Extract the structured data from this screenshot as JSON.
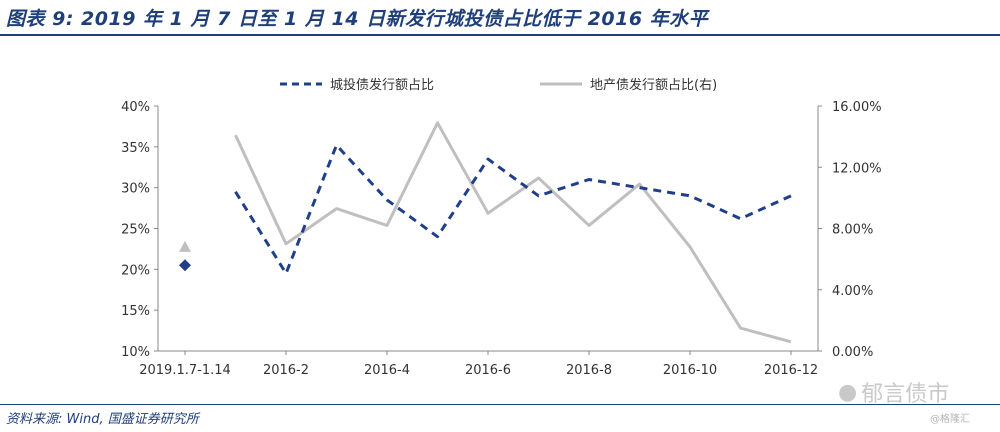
{
  "title": "图表 9: 2019 年 1 月 7 日至 1 月 14 日新发行城投债占比低于 2016 年水平",
  "source": "资料来源: Wind, 国盛证券研究所",
  "watermark": {
    "primary": "郁言债市",
    "secondary": "@格隆汇"
  },
  "colors": {
    "series_urban": "#1f3f8a",
    "series_property": "#bfbfbf",
    "title": "#1e3f7a"
  },
  "chart_data": {
    "type": "line",
    "categories": [
      "2019.1.7-1.14",
      "2016-1",
      "2016-2",
      "2016-3",
      "2016-4",
      "2016-5",
      "2016-6",
      "2016-7",
      "2016-8",
      "2016-9",
      "2016-10",
      "2016-11",
      "2016-12"
    ],
    "x_tick_labels": [
      "2019.1.7-1.14",
      "2016-2",
      "2016-4",
      "2016-6",
      "2016-8",
      "2016-10",
      "2016-12"
    ],
    "y_left": {
      "ticks": [
        "10%",
        "15%",
        "20%",
        "25%",
        "30%",
        "35%",
        "40%"
      ],
      "range": [
        0.1,
        0.4
      ]
    },
    "y_right": {
      "ticks": [
        "0.00%",
        "4.00%",
        "8.00%",
        "12.00%",
        "16.00%"
      ],
      "range": [
        0,
        0.16
      ]
    },
    "series": [
      {
        "name": "城投债发行额占比",
        "axis": "left",
        "style": "dashed",
        "values": [
          0.205,
          0.295,
          0.195,
          0.352,
          0.285,
          0.24,
          0.335,
          0.29,
          0.31,
          0.3,
          0.29,
          0.262,
          0.29
        ]
      },
      {
        "name": "地产债发行额占比(右)",
        "axis": "right",
        "style": "solid",
        "values": [
          0.068,
          0.141,
          0.07,
          0.093,
          0.082,
          0.149,
          0.09,
          0.113,
          0.082,
          0.109,
          0.068,
          0.015,
          0.006
        ]
      }
    ],
    "legend_position": "top",
    "grid": false
  }
}
